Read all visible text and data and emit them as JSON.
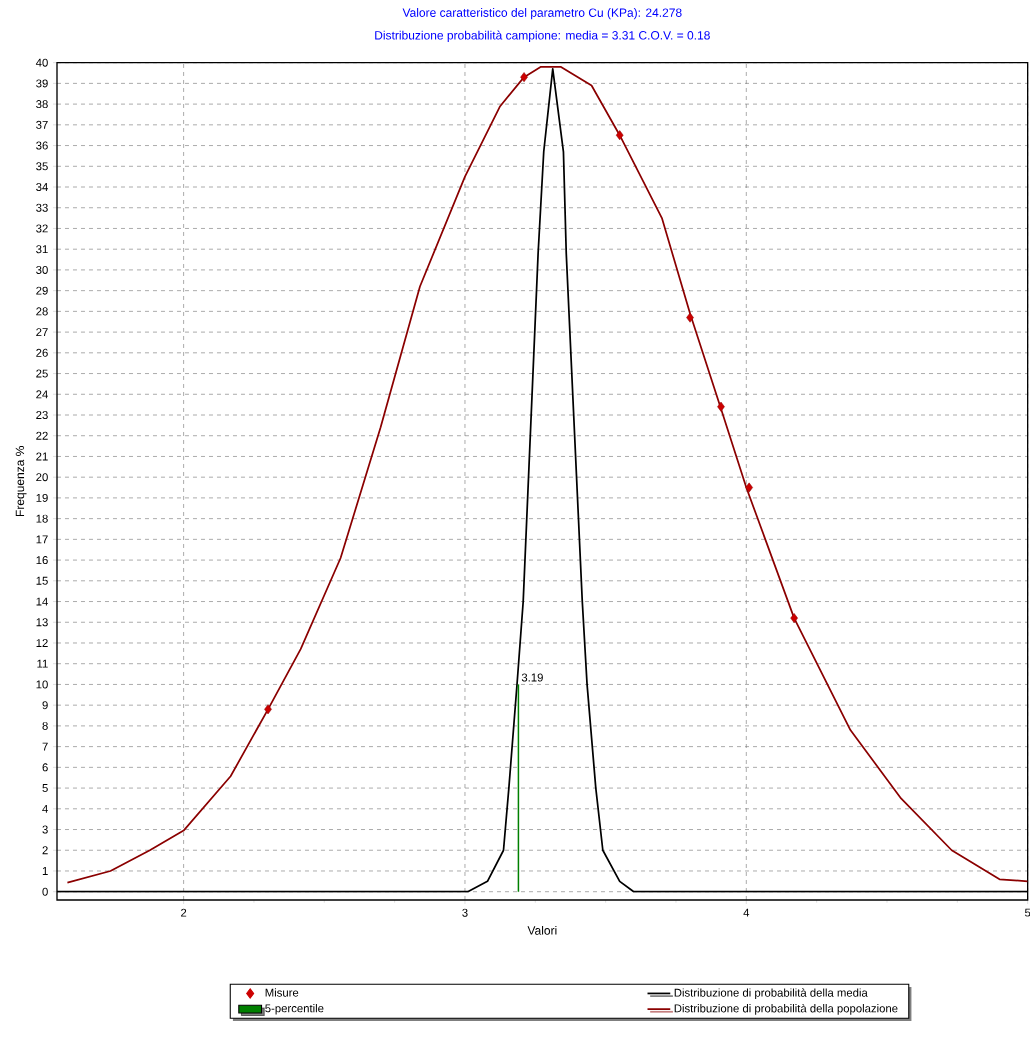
{
  "chart_data": {
    "type": "line",
    "title": "Valore caratteristico del parametro Cu (KPa): 24.278",
    "subtitle": "Distribuzione probabilità campione: media = 3.31 C.O.V. = 0.18",
    "xlabel": "Valori",
    "ylabel": "Frequenza %",
    "xlim": [
      1.55,
      5
    ],
    "ylim": [
      -0.4,
      40
    ],
    "xticks": [
      2,
      3,
      4,
      5
    ],
    "yticks": [
      0,
      1,
      2,
      3,
      4,
      5,
      6,
      7,
      8,
      9,
      10,
      11,
      12,
      13,
      14,
      15,
      16,
      17,
      18,
      19,
      20,
      21,
      22,
      23,
      24,
      25,
      26,
      27,
      28,
      29,
      30,
      31,
      32,
      33,
      34,
      35,
      36,
      37,
      38,
      39,
      40
    ],
    "grid": true,
    "legend": "bottom",
    "annotations": [
      {
        "text": "3.19",
        "x": 3.19,
        "y": 10
      }
    ],
    "series": [
      {
        "name": "Misure",
        "type": "scatter",
        "marker": "diamond",
        "color": "#cc0000",
        "x": [
          2.3,
          3.21,
          3.55,
          3.8,
          3.91,
          4.01,
          4.17
        ],
        "values": [
          8.8,
          39.3,
          36.5,
          27.7,
          23.4,
          19.5,
          13.2
        ]
      },
      {
        "name": "5-percentile",
        "type": "bar",
        "color": "#008000",
        "x": [
          3.19
        ],
        "values": [
          10
        ]
      },
      {
        "name": "Distribuzione di probabilità della media",
        "color": "#000000",
        "x": [
          1.55,
          3.01,
          3.08,
          3.137,
          3.156,
          3.185,
          3.207,
          3.26,
          3.28,
          3.312,
          3.35,
          3.36,
          3.417,
          3.434,
          3.465,
          3.49,
          3.55,
          3.6,
          5.0
        ],
        "values": [
          0,
          0,
          0.5,
          2,
          5,
          10,
          14,
          30.8,
          35.7,
          39.7,
          35.7,
          30.8,
          14,
          10,
          5,
          2,
          0.5,
          0,
          0
        ]
      },
      {
        "name": "Distribuzione di probabilità della popolazione",
        "color": "#8b0000",
        "x": [
          1.587,
          1.74,
          1.88,
          2.0,
          2.167,
          2.3,
          2.416,
          2.558,
          2.7,
          2.84,
          3.0,
          3.125,
          3.21,
          3.27,
          3.34,
          3.45,
          3.55,
          3.7,
          3.8,
          3.91,
          4.0,
          4.17,
          4.37,
          4.55,
          4.73,
          4.9,
          5.0
        ],
        "values": [
          0.44,
          1.0,
          2.0,
          2.95,
          5.57,
          8.8,
          11.7,
          16.1,
          22.4,
          29.2,
          34.5,
          37.9,
          39.3,
          39.8,
          39.8,
          38.9,
          36.5,
          32.5,
          27.9,
          23.3,
          19.5,
          13.2,
          7.8,
          4.5,
          2.0,
          0.6,
          0.5
        ]
      }
    ]
  }
}
